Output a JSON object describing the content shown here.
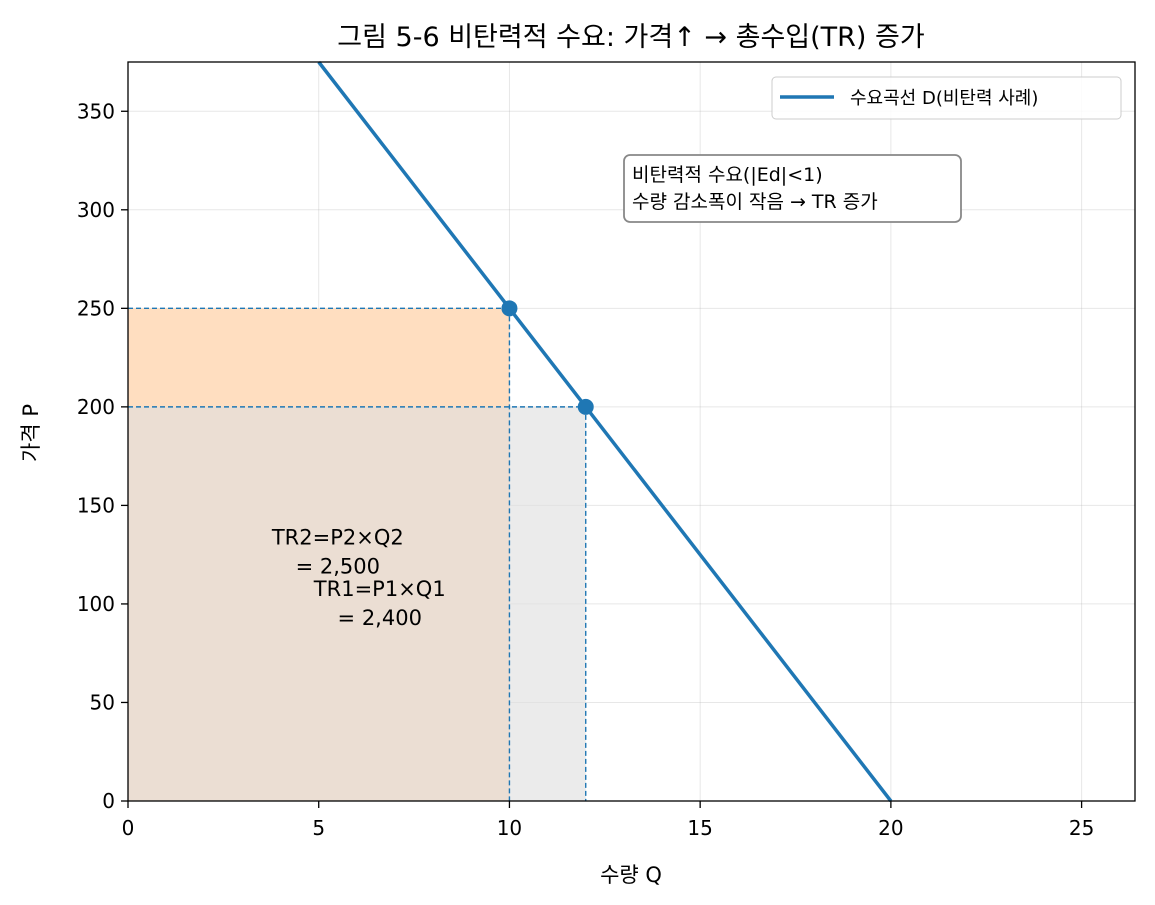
{
  "chart_data": {
    "type": "line",
    "title": "그림 5-6  비탄력적 수요: 가격↑ → 총수입(TR) 증가",
    "xlabel": "수량 Q",
    "ylabel": "가격 P",
    "xlim": [
      0,
      26.4
    ],
    "ylim": [
      0,
      375
    ],
    "xticks": [
      0,
      5,
      10,
      15,
      20,
      25
    ],
    "yticks": [
      0,
      50,
      100,
      150,
      200,
      250,
      300,
      350
    ],
    "grid": true,
    "legend_position": "top-right",
    "series": [
      {
        "name": "수요곡선 D(비탄력 사례)",
        "x": [
          5,
          20
        ],
        "y": [
          375,
          0
        ],
        "color": "#1f77b4"
      }
    ],
    "points": [
      {
        "x": 10,
        "y": 250
      },
      {
        "x": 12,
        "y": 200
      }
    ],
    "regions": [
      {
        "x0": 0,
        "x1": 10,
        "y0": 0,
        "y1": 250,
        "color": "#ffdec0",
        "label": [
          "TR2=P2×Q2",
          "= 2,500"
        ],
        "label_pos": [
          5.5,
          126
        ]
      },
      {
        "x0": 0,
        "x1": 12,
        "y0": 0,
        "y1": 200,
        "color": "#dedede",
        "label": [
          "TR1=P1×Q1",
          "= 2,400"
        ],
        "label_pos": [
          6.6,
          100
        ]
      }
    ],
    "annotation": [
      "비탄력적 수요(|Ed|<1)",
      "수량 감소폭이 작음 → TR 증가"
    ],
    "annotation_pos": [
      13.2,
      305
    ]
  }
}
